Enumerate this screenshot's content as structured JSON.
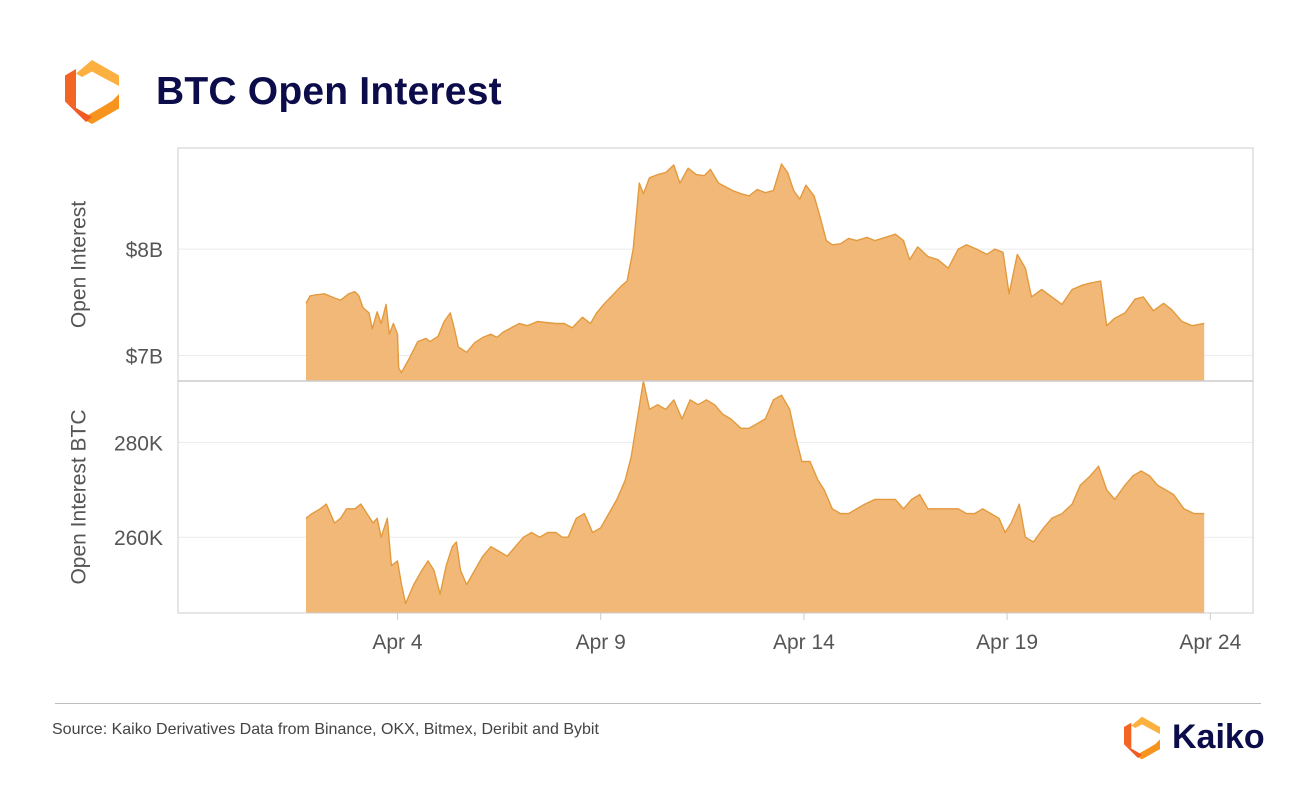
{
  "header": {
    "title": "BTC Open Interest",
    "logo_icon": "kaiko-hexagon-logo-icon"
  },
  "footer": {
    "source": "Source: Kaiko Derivatives Data from Binance, OKX, Bitmex, Deribit and Bybit",
    "brand_name": "Kaiko",
    "brand_icon": "kaiko-hexagon-logo-icon"
  },
  "colors": {
    "area_fill": "#f2b877",
    "area_line": "#e39a3e",
    "title": "#0c0c4a",
    "logo_light": "#fbb040",
    "logo_dark": "#f26522"
  },
  "chart_data": [
    {
      "type": "area",
      "ylabel": "Open Interest",
      "ylim": [
        6.76,
        8.95
      ],
      "yticks": [
        {
          "value": 7,
          "label": "$7B"
        },
        {
          "value": 8,
          "label": "$8B"
        }
      ],
      "grid": true,
      "points": [
        [
          1.75,
          7.49
        ],
        [
          1.85,
          7.56
        ],
        [
          2.0,
          7.57
        ],
        [
          2.2,
          7.58
        ],
        [
          2.45,
          7.54
        ],
        [
          2.6,
          7.52
        ],
        [
          2.8,
          7.58
        ],
        [
          2.95,
          7.6
        ],
        [
          3.05,
          7.56
        ],
        [
          3.15,
          7.45
        ],
        [
          3.3,
          7.4
        ],
        [
          3.38,
          7.25
        ],
        [
          3.5,
          7.41
        ],
        [
          3.6,
          7.3
        ],
        [
          3.72,
          7.48
        ],
        [
          3.8,
          7.2
        ],
        [
          3.9,
          7.3
        ],
        [
          4.0,
          7.2
        ],
        [
          4.03,
          6.88
        ],
        [
          4.1,
          6.84
        ],
        [
          4.3,
          6.98
        ],
        [
          4.5,
          7.13
        ],
        [
          4.7,
          7.16
        ],
        [
          4.8,
          7.13
        ],
        [
          5.0,
          7.18
        ],
        [
          5.15,
          7.32
        ],
        [
          5.3,
          7.4
        ],
        [
          5.4,
          7.25
        ],
        [
          5.5,
          7.08
        ],
        [
          5.7,
          7.03
        ],
        [
          5.9,
          7.12
        ],
        [
          6.1,
          7.17
        ],
        [
          6.3,
          7.2
        ],
        [
          6.45,
          7.17
        ],
        [
          6.6,
          7.22
        ],
        [
          6.8,
          7.26
        ],
        [
          7.0,
          7.3
        ],
        [
          7.2,
          7.28
        ],
        [
          7.45,
          7.32
        ],
        [
          7.65,
          7.31
        ],
        [
          7.9,
          7.3
        ],
        [
          8.1,
          7.3
        ],
        [
          8.3,
          7.26
        ],
        [
          8.55,
          7.36
        ],
        [
          8.75,
          7.3
        ],
        [
          8.9,
          7.4
        ],
        [
          9.1,
          7.49
        ],
        [
          9.3,
          7.57
        ],
        [
          9.5,
          7.65
        ],
        [
          9.65,
          7.7
        ],
        [
          9.8,
          8.0
        ],
        [
          9.95,
          8.62
        ],
        [
          10.05,
          8.52
        ],
        [
          10.2,
          8.67
        ],
        [
          10.4,
          8.7
        ],
        [
          10.6,
          8.72
        ],
        [
          10.8,
          8.79
        ],
        [
          10.95,
          8.62
        ],
        [
          11.15,
          8.76
        ],
        [
          11.35,
          8.7
        ],
        [
          11.55,
          8.69
        ],
        [
          11.7,
          8.75
        ],
        [
          11.9,
          8.62
        ],
        [
          12.05,
          8.59
        ],
        [
          12.25,
          8.55
        ],
        [
          12.45,
          8.52
        ],
        [
          12.65,
          8.5
        ],
        [
          12.85,
          8.56
        ],
        [
          13.05,
          8.53
        ],
        [
          13.25,
          8.55
        ],
        [
          13.45,
          8.8
        ],
        [
          13.6,
          8.72
        ],
        [
          13.75,
          8.55
        ],
        [
          13.9,
          8.47
        ],
        [
          14.05,
          8.6
        ],
        [
          14.25,
          8.5
        ],
        [
          14.4,
          8.3
        ],
        [
          14.55,
          8.08
        ],
        [
          14.7,
          8.04
        ],
        [
          14.9,
          8.05
        ],
        [
          15.1,
          8.1
        ],
        [
          15.3,
          8.08
        ],
        [
          15.55,
          8.11
        ],
        [
          15.75,
          8.08
        ],
        [
          16.0,
          8.11
        ],
        [
          16.25,
          8.14
        ],
        [
          16.45,
          8.08
        ],
        [
          16.6,
          7.9
        ],
        [
          16.8,
          8.02
        ],
        [
          17.05,
          7.93
        ],
        [
          17.3,
          7.9
        ],
        [
          17.55,
          7.82
        ],
        [
          17.8,
          8.0
        ],
        [
          18.0,
          8.04
        ],
        [
          18.25,
          8.0
        ],
        [
          18.5,
          7.95
        ],
        [
          18.7,
          8.0
        ],
        [
          18.9,
          7.97
        ],
        [
          19.05,
          7.58
        ],
        [
          19.25,
          7.95
        ],
        [
          19.45,
          7.82
        ],
        [
          19.6,
          7.55
        ],
        [
          19.85,
          7.62
        ],
        [
          20.1,
          7.55
        ],
        [
          20.35,
          7.48
        ],
        [
          20.6,
          7.62
        ],
        [
          20.85,
          7.66
        ],
        [
          21.05,
          7.68
        ],
        [
          21.3,
          7.7
        ],
        [
          21.45,
          7.28
        ],
        [
          21.65,
          7.35
        ],
        [
          21.9,
          7.4
        ],
        [
          22.15,
          7.53
        ],
        [
          22.35,
          7.55
        ],
        [
          22.6,
          7.42
        ],
        [
          22.85,
          7.49
        ],
        [
          23.05,
          7.43
        ],
        [
          23.3,
          7.32
        ],
        [
          23.55,
          7.28
        ],
        [
          23.85,
          7.3
        ]
      ]
    },
    {
      "type": "area",
      "ylabel": "Open Interest BTC",
      "ylim": [
        244,
        293
      ],
      "yticks": [
        {
          "value": 260,
          "label": "260K"
        },
        {
          "value": 280,
          "label": "280K"
        }
      ],
      "grid": true,
      "points": [
        [
          1.75,
          264
        ],
        [
          1.9,
          265
        ],
        [
          2.1,
          266
        ],
        [
          2.25,
          267
        ],
        [
          2.45,
          263
        ],
        [
          2.6,
          264
        ],
        [
          2.75,
          266
        ],
        [
          2.95,
          266
        ],
        [
          3.1,
          267
        ],
        [
          3.25,
          265
        ],
        [
          3.4,
          263
        ],
        [
          3.5,
          264
        ],
        [
          3.6,
          260
        ],
        [
          3.75,
          264
        ],
        [
          3.85,
          254
        ],
        [
          4.0,
          255
        ],
        [
          4.1,
          250
        ],
        [
          4.2,
          246
        ],
        [
          4.4,
          250
        ],
        [
          4.6,
          253
        ],
        [
          4.75,
          255
        ],
        [
          4.9,
          253
        ],
        [
          5.05,
          248
        ],
        [
          5.2,
          254
        ],
        [
          5.35,
          258
        ],
        [
          5.45,
          259
        ],
        [
          5.55,
          253
        ],
        [
          5.7,
          250
        ],
        [
          5.9,
          253
        ],
        [
          6.1,
          256
        ],
        [
          6.3,
          258
        ],
        [
          6.5,
          257
        ],
        [
          6.7,
          256
        ],
        [
          6.9,
          258
        ],
        [
          7.1,
          260
        ],
        [
          7.3,
          261
        ],
        [
          7.5,
          260
        ],
        [
          7.7,
          261
        ],
        [
          7.9,
          261
        ],
        [
          8.05,
          260
        ],
        [
          8.2,
          260
        ],
        [
          8.4,
          264
        ],
        [
          8.6,
          265
        ],
        [
          8.8,
          261
        ],
        [
          9.0,
          262
        ],
        [
          9.2,
          265
        ],
        [
          9.4,
          268
        ],
        [
          9.6,
          272
        ],
        [
          9.75,
          277
        ],
        [
          9.9,
          285
        ],
        [
          10.05,
          293
        ],
        [
          10.2,
          287
        ],
        [
          10.4,
          288
        ],
        [
          10.6,
          287
        ],
        [
          10.8,
          289
        ],
        [
          11.0,
          285
        ],
        [
          11.2,
          289
        ],
        [
          11.4,
          288
        ],
        [
          11.6,
          289
        ],
        [
          11.8,
          288
        ],
        [
          12.0,
          286
        ],
        [
          12.2,
          285
        ],
        [
          12.45,
          283
        ],
        [
          12.65,
          283
        ],
        [
          12.85,
          284
        ],
        [
          13.05,
          285
        ],
        [
          13.25,
          289
        ],
        [
          13.45,
          290
        ],
        [
          13.65,
          287
        ],
        [
          13.8,
          281
        ],
        [
          13.95,
          276
        ],
        [
          14.15,
          276
        ],
        [
          14.35,
          272
        ],
        [
          14.5,
          270
        ],
        [
          14.7,
          266
        ],
        [
          14.9,
          265
        ],
        [
          15.1,
          265
        ],
        [
          15.3,
          266
        ],
        [
          15.5,
          267
        ],
        [
          15.75,
          268
        ],
        [
          16.0,
          268
        ],
        [
          16.25,
          268
        ],
        [
          16.45,
          266
        ],
        [
          16.65,
          268
        ],
        [
          16.85,
          269
        ],
        [
          17.05,
          266
        ],
        [
          17.3,
          266
        ],
        [
          17.55,
          266
        ],
        [
          17.8,
          266
        ],
        [
          18.0,
          265
        ],
        [
          18.2,
          265
        ],
        [
          18.4,
          266
        ],
        [
          18.6,
          265
        ],
        [
          18.8,
          264
        ],
        [
          18.95,
          261
        ],
        [
          19.1,
          263
        ],
        [
          19.3,
          267
        ],
        [
          19.45,
          260
        ],
        [
          19.65,
          259
        ],
        [
          19.9,
          262
        ],
        [
          20.1,
          264
        ],
        [
          20.35,
          265
        ],
        [
          20.6,
          267
        ],
        [
          20.8,
          271
        ],
        [
          21.05,
          273
        ],
        [
          21.25,
          275
        ],
        [
          21.45,
          270
        ],
        [
          21.65,
          268
        ],
        [
          21.9,
          271
        ],
        [
          22.1,
          273
        ],
        [
          22.3,
          274
        ],
        [
          22.5,
          273
        ],
        [
          22.7,
          271
        ],
        [
          22.9,
          270
        ],
        [
          23.1,
          269
        ],
        [
          23.35,
          266
        ],
        [
          23.6,
          265
        ],
        [
          23.85,
          265
        ]
      ]
    }
  ],
  "x_axis": {
    "ticks": [
      {
        "value": 4,
        "label": "Apr 4"
      },
      {
        "value": 9,
        "label": "Apr 9"
      },
      {
        "value": 14,
        "label": "Apr 14"
      },
      {
        "value": 19,
        "label": "Apr 19"
      },
      {
        "value": 24,
        "label": "Apr 24"
      }
    ],
    "range": [
      -1.4,
      25.05
    ]
  }
}
